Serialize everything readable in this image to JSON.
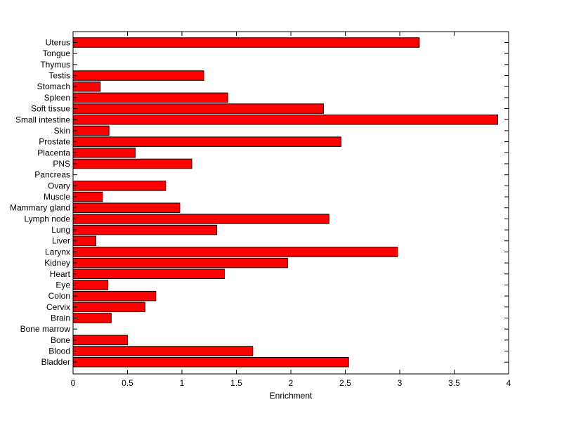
{
  "chart_data": {
    "type": "bar",
    "orientation": "horizontal",
    "xlabel": "Enrichment",
    "ylabel": "",
    "xlim": [
      0,
      4
    ],
    "xticks": [
      "0",
      "0.5",
      "1",
      "1.5",
      "2",
      "2.5",
      "3",
      "3.5",
      "4"
    ],
    "bar_color": "#ff0000",
    "categories": [
      "Uterus",
      "Tongue",
      "Thymus",
      "Testis",
      "Stomach",
      "Spleen",
      "Soft tissue",
      "Small intestine",
      "Skin",
      "Prostate",
      "Placenta",
      "PNS",
      "Pancreas",
      "Ovary",
      "Muscle",
      "Mammary gland",
      "Lymph node",
      "Lung",
      "Liver",
      "Larynx",
      "Kidney",
      "Heart",
      "Eye",
      "Colon",
      "Cervix",
      "Brain",
      "Bone marrow",
      "Bone",
      "Blood",
      "Bladder"
    ],
    "values": [
      3.18,
      0,
      0,
      1.2,
      0.25,
      1.42,
      2.3,
      3.9,
      0.33,
      2.46,
      0.57,
      1.09,
      0,
      0.85,
      0.27,
      0.98,
      2.35,
      1.32,
      0.21,
      2.98,
      1.97,
      1.39,
      0.32,
      0.76,
      0.66,
      0.35,
      0,
      0.5,
      1.65,
      2.53
    ]
  }
}
